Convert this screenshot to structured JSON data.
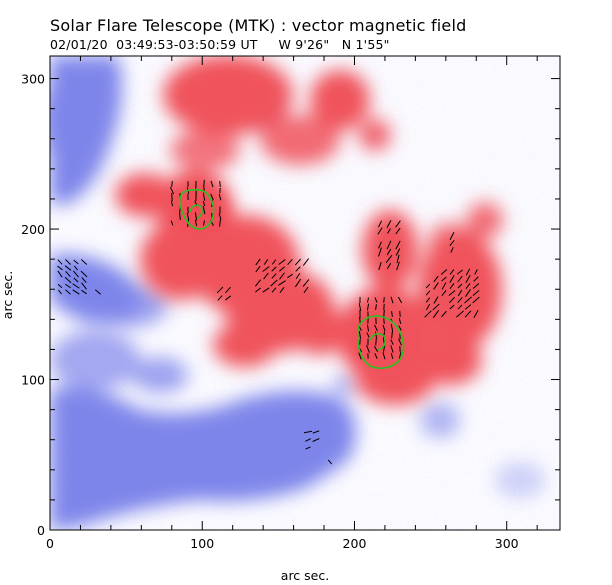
{
  "title": "Solar Flare Telescope (MTK) : vector magnetic field",
  "subtitle": "02/01/20  03:49:53-03:50:59 UT     W 9'26\"   N 1'55\"",
  "chart_data": {
    "type": "heatmap",
    "xlabel": "arc sec.",
    "ylabel": "arc sec.",
    "xlim": [
      0,
      335
    ],
    "ylim": [
      0,
      315
    ],
    "x_ticks": [
      "0",
      "100",
      "200",
      "300"
    ],
    "y_ticks": [
      "0",
      "100",
      "200",
      "300"
    ],
    "colors": {
      "positive": "#f0505a",
      "negative": "#6670e6",
      "contour": "#27c21f",
      "vectors": "#000000",
      "frame": "#000000"
    }
  }
}
